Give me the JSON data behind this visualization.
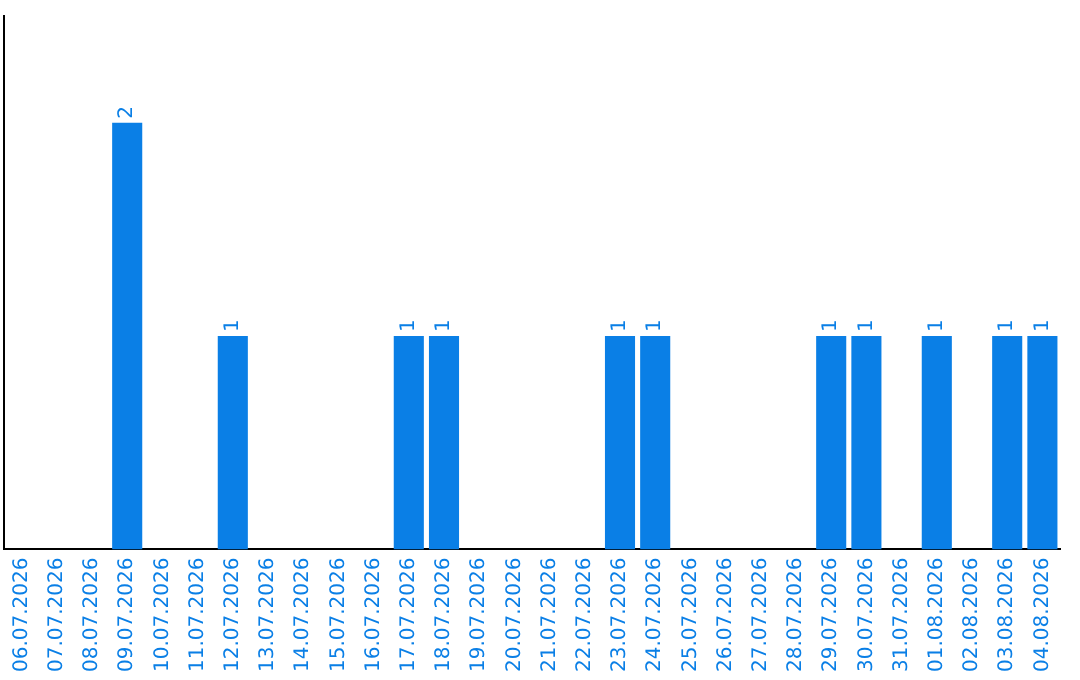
{
  "chart_data": {
    "type": "bar",
    "categories": [
      "06.07.2026",
      "07.07.2026",
      "08.07.2026",
      "09.07.2026",
      "10.07.2026",
      "11.07.2026",
      "12.07.2026",
      "13.07.2026",
      "14.07.2026",
      "15.07.2026",
      "16.07.2026",
      "17.07.2026",
      "18.07.2026",
      "19.07.2026",
      "20.07.2026",
      "21.07.2026",
      "22.07.2026",
      "23.07.2026",
      "24.07.2026",
      "25.07.2026",
      "26.07.2026",
      "27.07.2026",
      "28.07.2026",
      "29.07.2026",
      "30.07.2026",
      "31.07.2026",
      "01.08.2026",
      "02.08.2026",
      "03.08.2026",
      "04.08.2026"
    ],
    "values": [
      0,
      0,
      0,
      2,
      0,
      0,
      1,
      0,
      0,
      0,
      0,
      1,
      1,
      0,
      0,
      0,
      0,
      1,
      1,
      0,
      0,
      0,
      0,
      1,
      1,
      0,
      1,
      0,
      1,
      1
    ],
    "value_labels": [
      null,
      null,
      null,
      "2",
      null,
      null,
      "1",
      null,
      null,
      null,
      null,
      "1",
      "1",
      null,
      null,
      null,
      null,
      "1",
      "1",
      null,
      null,
      null,
      null,
      "1",
      "1",
      null,
      "1",
      null,
      "1",
      "1"
    ],
    "color": "#0a7fe6",
    "grid": false,
    "tick_labels": "x"
  }
}
